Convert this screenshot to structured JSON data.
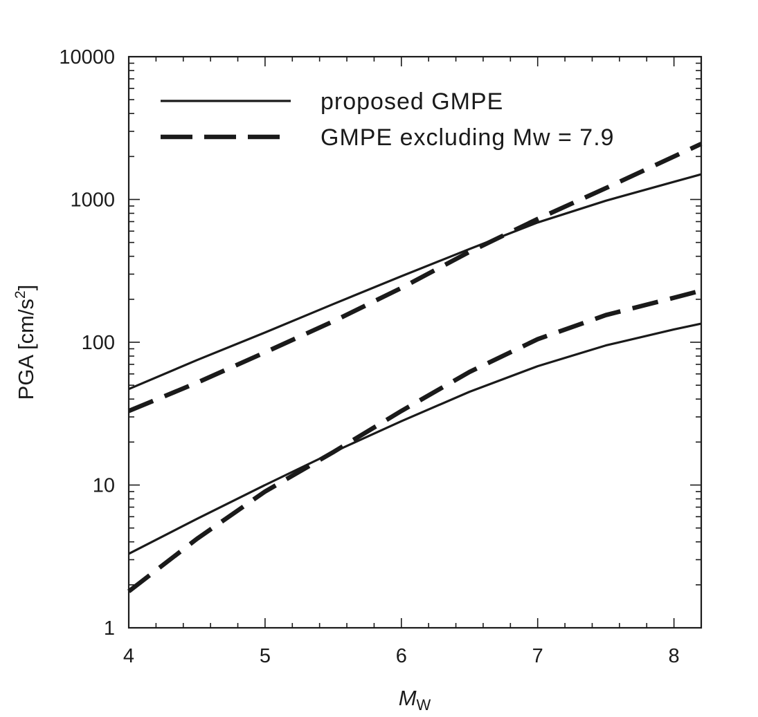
{
  "chart_data": {
    "type": "line",
    "xlabel": {
      "main": "M",
      "sub": "W"
    },
    "ylabel": {
      "main": "PGA [cm/s",
      "sup": "2",
      "close": "]"
    },
    "xlim": [
      4,
      8.2
    ],
    "ylim": [
      1,
      10000
    ],
    "yscale": "log",
    "grid": false,
    "legend_position": "top-left",
    "x_ticks": [
      4,
      5,
      6,
      7,
      8
    ],
    "x_tick_labels": [
      "4",
      "5",
      "6",
      "7",
      "8"
    ],
    "y_ticks": [
      1,
      10,
      100,
      1000,
      10000
    ],
    "y_tick_labels": [
      "1",
      "10",
      "100",
      "1000",
      "10000"
    ],
    "legend": [
      {
        "label": "proposed GMPE",
        "style": "solid"
      },
      {
        "label": "GMPE excluding Mw = 7.9",
        "style": "dashed"
      }
    ],
    "series": [
      {
        "style": "solid",
        "legend_index": 0,
        "x": [
          4,
          4.5,
          5,
          5.5,
          6,
          6.5,
          7,
          7.5,
          8,
          8.2
        ],
        "y": [
          47,
          75,
          117,
          185,
          290,
          450,
          690,
          980,
          1330,
          1500
        ]
      },
      {
        "style": "dashed",
        "legend_index": 1,
        "x": [
          4,
          4.5,
          5,
          5.5,
          6,
          6.5,
          7,
          7.5,
          8,
          8.2
        ],
        "y": [
          33,
          52,
          85,
          140,
          240,
          430,
          730,
          1200,
          2000,
          2450
        ]
      },
      {
        "style": "solid",
        "legend_index": 0,
        "x": [
          4,
          4.5,
          5,
          5.5,
          6,
          6.5,
          7,
          7.5,
          8,
          8.2
        ],
        "y": [
          3.3,
          5.8,
          10,
          17,
          28,
          45,
          68,
          95,
          123,
          135
        ]
      },
      {
        "style": "dashed",
        "legend_index": 1,
        "x": [
          4,
          4.5,
          5,
          5.5,
          6,
          6.5,
          7,
          7.5,
          8,
          8.2
        ],
        "y": [
          1.8,
          4.2,
          9,
          17,
          33,
          62,
          105,
          155,
          205,
          230
        ]
      }
    ],
    "colors": {
      "line": "#1a1a1a",
      "axis": "#1a1a1a",
      "background": "#ffffff"
    }
  }
}
